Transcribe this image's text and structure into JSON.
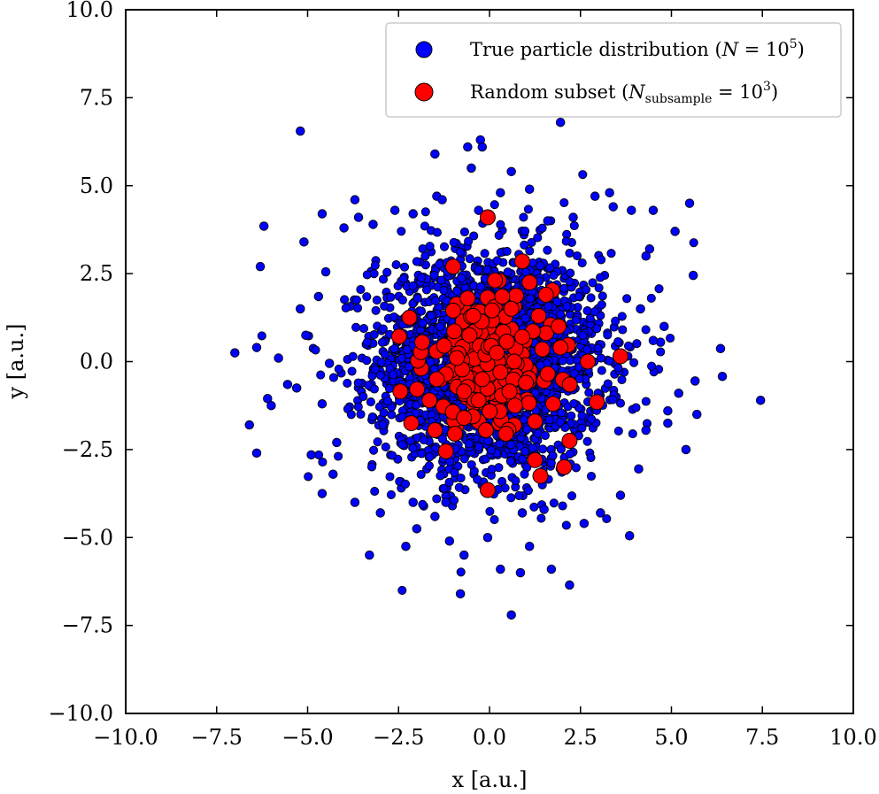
{
  "chart_data": {
    "type": "scatter",
    "xlabel": "x [a.u.]",
    "ylabel": "y [a.u.]",
    "xlim": [
      -10,
      10
    ],
    "ylim": [
      -10,
      10
    ],
    "xticks": [
      "−10.0",
      "−7.5",
      "−5.0",
      "−2.5",
      "0.0",
      "2.5",
      "5.0",
      "7.5",
      "10.0"
    ],
    "yticks": [
      "−10.0",
      "−7.5",
      "−5.0",
      "−2.5",
      "0.0",
      "2.5",
      "5.0",
      "7.5",
      "10.0"
    ],
    "grid": false,
    "legend_position": "top-right",
    "legend": {
      "true_dist": {
        "main": "True particle distribution (",
        "var": "N",
        "eq": " = 10",
        "sup": "5",
        "close": ")"
      },
      "subset": {
        "main": "Random subset (",
        "var": "N",
        "sub": "subsample",
        "eq": " = 10",
        "sup": "3",
        "close": ")"
      }
    },
    "series": [
      {
        "key": "true_dist",
        "color": "#0000ff",
        "edgecolor": "#000000",
        "marker_size": "small",
        "distribution": "normal(0,1.6)",
        "total_points": 100000,
        "points": [
          [
            -5.2,
            6.55
          ],
          [
            1.95,
            6.8
          ],
          [
            -1.5,
            5.9
          ],
          [
            -0.6,
            6.1
          ],
          [
            -0.25,
            6.3
          ],
          [
            -0.2,
            6.1
          ],
          [
            -0.5,
            5.5
          ],
          [
            0.6,
            5.4
          ],
          [
            -6.2,
            3.85
          ],
          [
            -6.3,
            2.7
          ],
          [
            -5.1,
            3.4
          ],
          [
            -4.6,
            4.2
          ],
          [
            -3.7,
            4.6
          ],
          [
            -1.45,
            4.7
          ],
          [
            5.5,
            4.5
          ],
          [
            4.5,
            4.3
          ],
          [
            3.3,
            4.8
          ],
          [
            2.9,
            4.7
          ],
          [
            5.6,
            2.45
          ],
          [
            4.4,
            3.2
          ],
          [
            -7.0,
            0.25
          ],
          [
            -6.4,
            0.4
          ],
          [
            6.35,
            0.37
          ],
          [
            6.4,
            -0.42
          ],
          [
            5.65,
            -0.55
          ],
          [
            7.45,
            -1.1
          ],
          [
            5.2,
            -0.9
          ],
          [
            -6.1,
            -1.05
          ],
          [
            -6.0,
            -1.25
          ],
          [
            -5.3,
            -0.75
          ],
          [
            -4.6,
            -1.2
          ],
          [
            -6.6,
            -1.8
          ],
          [
            -6.4,
            -2.6
          ],
          [
            -4.9,
            -2.65
          ],
          [
            -4.2,
            -2.3
          ],
          [
            -4.3,
            -3.2
          ],
          [
            -4.6,
            -3.75
          ],
          [
            5.4,
            -2.5
          ],
          [
            4.1,
            -3.05
          ],
          [
            3.85,
            -4.95
          ],
          [
            -3.3,
            -5.5
          ],
          [
            -2.3,
            -5.25
          ],
          [
            -1.1,
            -5.1
          ],
          [
            -0.7,
            -5.5
          ],
          [
            -0.8,
            -6.6
          ],
          [
            0.6,
            -7.2
          ],
          [
            1.7,
            -5.9
          ],
          [
            2.2,
            -6.35
          ],
          [
            1.1,
            -5.25
          ],
          [
            0.3,
            -5.9
          ],
          [
            0.85,
            -6.0
          ],
          [
            -0.05,
            -5.0
          ],
          [
            3.05,
            -4.3
          ],
          [
            -3.0,
            -4.3
          ],
          [
            -2.1,
            -4.0
          ],
          [
            -5.2,
            1.5
          ],
          [
            -4.5,
            2.55
          ],
          [
            -4.0,
            3.8
          ],
          [
            -3.2,
            3.9
          ],
          [
            -2.6,
            4.3
          ],
          [
            -2.1,
            4.2
          ],
          [
            -1.3,
            4.6
          ],
          [
            -0.3,
            4.3
          ],
          [
            0.3,
            4.8
          ],
          [
            1.1,
            4.9
          ],
          [
            1.6,
            4.0
          ],
          [
            2.3,
            4.1
          ],
          [
            3.4,
            4.4
          ],
          [
            3.9,
            4.3
          ],
          [
            4.3,
            3.0
          ],
          [
            5.1,
            3.7
          ],
          [
            4.8,
            1.0
          ],
          [
            5.7,
            -1.5
          ],
          [
            4.9,
            -1.4
          ],
          [
            4.7,
            0.55
          ],
          [
            -5.55,
            -0.65
          ],
          [
            -5.8,
            0.1
          ],
          [
            -5.05,
            0.75
          ],
          [
            -3.6,
            4.1
          ],
          [
            3.6,
            -3.8
          ],
          [
            2.6,
            -4.6
          ],
          [
            -2.0,
            -4.75
          ],
          [
            -1.5,
            -4.4
          ],
          [
            -3.7,
            -4.0
          ],
          [
            -4.7,
            1.85
          ],
          [
            -4.4,
            -0.05
          ],
          [
            4.15,
            1.5
          ],
          [
            4.3,
            -1.95
          ],
          [
            4.9,
            -1.75
          ],
          [
            4.5,
            0.6
          ],
          [
            -1.2,
            -4.0
          ],
          [
            0.9,
            -4.3
          ],
          [
            1.5,
            -4.2
          ]
        ]
      },
      {
        "key": "subset",
        "color": "#ff0000",
        "edgecolor": "#000000",
        "marker_size": "large",
        "distribution": "normal(0,1.2)",
        "total_points": 1000,
        "points": [
          [
            -0.05,
            4.1
          ],
          [
            0.9,
            2.85
          ],
          [
            -1.0,
            2.7
          ],
          [
            1.1,
            2.25
          ],
          [
            1.55,
            1.9
          ],
          [
            -2.2,
            1.25
          ],
          [
            -0.6,
            1.8
          ],
          [
            -1.85,
            0.55
          ],
          [
            3.6,
            0.15
          ],
          [
            2.7,
            0.0
          ],
          [
            2.95,
            -1.15
          ],
          [
            -2.45,
            -0.85
          ],
          [
            -2.15,
            -1.75
          ],
          [
            -1.5,
            -1.95
          ],
          [
            -1.2,
            -2.55
          ],
          [
            -0.1,
            -1.95
          ],
          [
            0.45,
            -2.05
          ],
          [
            1.25,
            -2.8
          ],
          [
            1.4,
            -3.25
          ],
          [
            2.05,
            -3.0
          ],
          [
            2.2,
            -2.25
          ],
          [
            -0.05,
            -3.65
          ],
          [
            -0.95,
            -2.05
          ],
          [
            0.35,
            1.85
          ],
          [
            0.6,
            1.5
          ],
          [
            1.35,
            1.3
          ],
          [
            1.9,
            1.0
          ],
          [
            1.95,
            0.4
          ],
          [
            -1.0,
            1.45
          ],
          [
            -0.45,
            1.3
          ],
          [
            -1.45,
            -0.5
          ],
          [
            -0.7,
            -0.85
          ],
          [
            0.3,
            -0.3
          ],
          [
            1.0,
            -0.6
          ],
          [
            1.6,
            -0.35
          ],
          [
            1.75,
            -1.2
          ],
          [
            0.7,
            -1.25
          ],
          [
            -0.3,
            -1.1
          ],
          [
            -1.25,
            0.45
          ],
          [
            -0.55,
            0.75
          ],
          [
            0.05,
            0.45
          ],
          [
            0.9,
            0.7
          ],
          [
            1.45,
            0.35
          ],
          [
            -0.9,
            0.1
          ],
          [
            0.2,
            0.25
          ],
          [
            -0.2,
            -0.5
          ],
          [
            0.55,
            -0.85
          ],
          [
            -1.65,
            -1.1
          ],
          [
            1.25,
            -1.7
          ],
          [
            -0.7,
            -1.6
          ]
        ]
      }
    ]
  }
}
